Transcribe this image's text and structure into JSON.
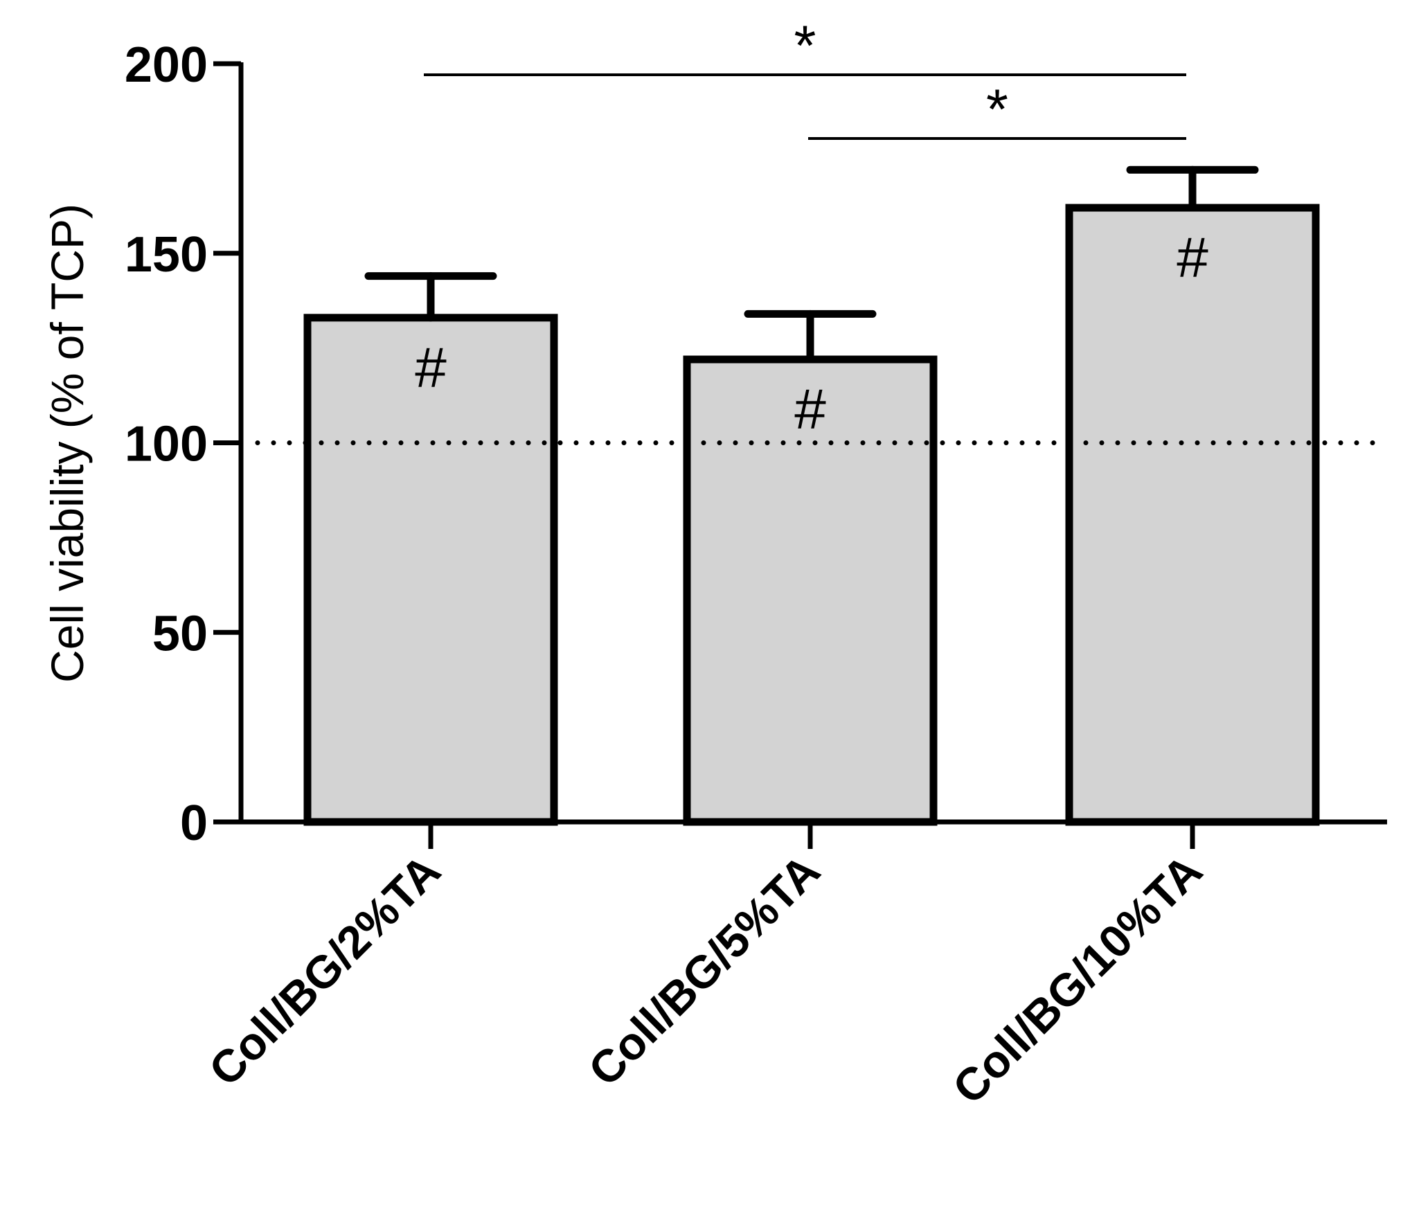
{
  "chart_data": {
    "type": "bar",
    "title": "",
    "xlabel": "",
    "ylabel": "Cell viability (% of TCP)",
    "ylim": [
      0,
      200
    ],
    "yticks": [
      0,
      50,
      100,
      150,
      200
    ],
    "categories": [
      "Coll/BG/2%TA",
      "Coll/BG/5%TA",
      "Coll/BG/10%TA"
    ],
    "values": [
      133,
      122,
      162
    ],
    "error_upper": [
      144,
      134,
      172
    ],
    "reference_line": {
      "value": 100,
      "style": "dotted"
    },
    "bar_annotations": [
      "#",
      "#",
      "#"
    ],
    "significance": [
      {
        "from": "Coll/BG/2%TA",
        "to": "Coll/BG/10%TA",
        "label": "*"
      },
      {
        "from": "Coll/BG/5%TA",
        "to": "Coll/BG/10%TA",
        "label": "*"
      }
    ],
    "colors": {
      "bar_fill": "#d3d3d3",
      "stroke": "#000000"
    }
  }
}
